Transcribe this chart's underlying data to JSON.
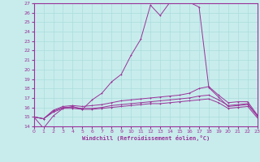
{
  "xlabel": "Windchill (Refroidissement éolien,°C)",
  "background_color": "#c8ecec",
  "grid_color": "#aadddd",
  "line_color": "#993399",
  "xlim": [
    0,
    23
  ],
  "ylim": [
    14,
    27
  ],
  "x_ticks": [
    0,
    1,
    2,
    3,
    4,
    5,
    6,
    7,
    8,
    9,
    10,
    11,
    12,
    13,
    14,
    15,
    16,
    17,
    18,
    19,
    20,
    21,
    22,
    23
  ],
  "y_ticks": [
    14,
    15,
    16,
    17,
    18,
    19,
    20,
    21,
    22,
    23,
    24,
    25,
    26,
    27
  ],
  "curve1_x": [
    0,
    1,
    2,
    3,
    4,
    5,
    6,
    7,
    8,
    9,
    10,
    11,
    12,
    13,
    14,
    15,
    16,
    17,
    18,
    19,
    20,
    21,
    22,
    23
  ],
  "curve1_y": [
    15.0,
    13.8,
    15.1,
    15.9,
    16.1,
    15.8,
    16.8,
    17.5,
    18.7,
    19.5,
    21.5,
    23.2,
    26.8,
    25.7,
    27.1,
    27.3,
    27.1,
    26.6,
    18.1,
    17.1,
    16.1,
    16.2,
    16.3,
    15.1
  ],
  "curve2_x": [
    0,
    1,
    2,
    3,
    4,
    5,
    6,
    7,
    8,
    9,
    10,
    11,
    12,
    13,
    14,
    15,
    16,
    17,
    18,
    19,
    20,
    21,
    22,
    23
  ],
  "curve2_y": [
    15.0,
    14.8,
    15.7,
    16.1,
    16.2,
    16.1,
    16.2,
    16.3,
    16.5,
    16.7,
    16.8,
    16.9,
    17.0,
    17.1,
    17.2,
    17.3,
    17.5,
    18.0,
    18.2,
    17.3,
    16.5,
    16.6,
    16.6,
    15.2
  ],
  "curve3_x": [
    0,
    1,
    2,
    3,
    4,
    5,
    6,
    7,
    8,
    9,
    10,
    11,
    12,
    13,
    14,
    15,
    16,
    17,
    18,
    19,
    20,
    21,
    22,
    23
  ],
  "curve3_y": [
    15.0,
    14.8,
    15.6,
    16.0,
    16.0,
    15.9,
    15.9,
    16.0,
    16.2,
    16.3,
    16.4,
    16.5,
    16.6,
    16.7,
    16.8,
    16.9,
    17.0,
    17.2,
    17.3,
    16.8,
    16.2,
    16.3,
    16.4,
    15.1
  ],
  "curve4_x": [
    0,
    1,
    2,
    3,
    4,
    5,
    6,
    7,
    8,
    9,
    10,
    11,
    12,
    13,
    14,
    15,
    16,
    17,
    18,
    19,
    20,
    21,
    22,
    23
  ],
  "curve4_y": [
    15.0,
    14.8,
    15.5,
    15.9,
    15.9,
    15.8,
    15.8,
    15.9,
    16.0,
    16.1,
    16.2,
    16.3,
    16.4,
    16.4,
    16.5,
    16.6,
    16.7,
    16.8,
    16.9,
    16.5,
    15.9,
    16.0,
    16.1,
    14.9
  ]
}
